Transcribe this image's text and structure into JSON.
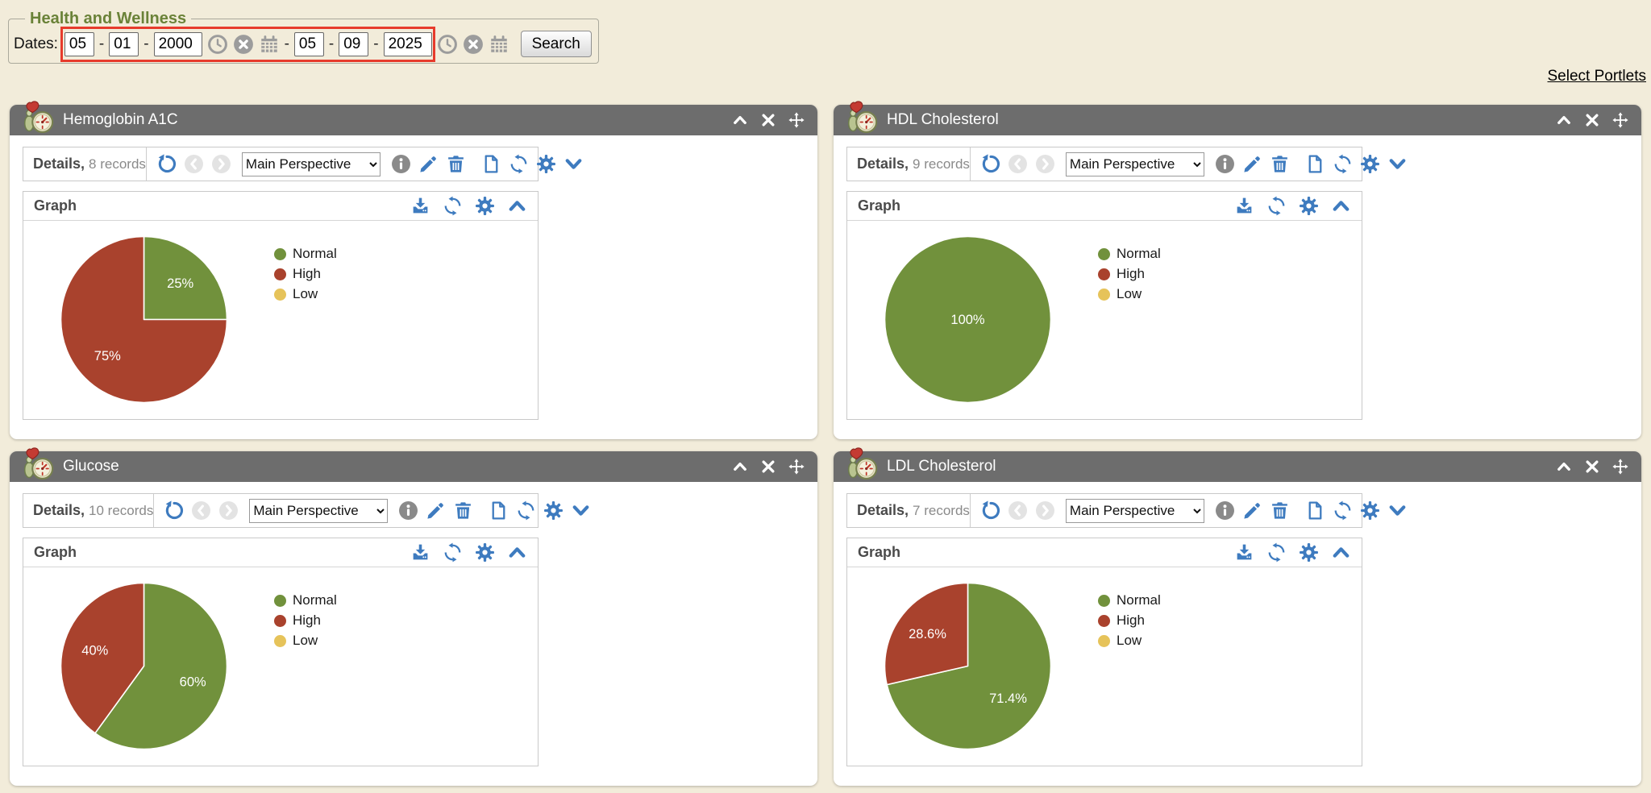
{
  "filter": {
    "legend": "Health and Wellness",
    "dates_label": "Dates:",
    "from": {
      "month": "05",
      "day": "01",
      "year": "2000"
    },
    "to": {
      "month": "05",
      "day": "09",
      "year": "2025"
    },
    "separator": "-",
    "search_label": "Search"
  },
  "select_portlets_label": "Select Portlets",
  "portlets": [
    {
      "title": "Hemoglobin A1C",
      "details_label": "Details,",
      "records_text": "8 records",
      "records_count": 8,
      "perspective": "Main Perspective",
      "graph_label": "Graph"
    },
    {
      "title": "HDL Cholesterol",
      "details_label": "Details,",
      "records_text": "9 records",
      "records_count": 9,
      "perspective": "Main Perspective",
      "graph_label": "Graph"
    },
    {
      "title": "Glucose",
      "details_label": "Details,",
      "records_text": "10 records",
      "records_count": 10,
      "perspective": "Main Perspective",
      "graph_label": "Graph"
    },
    {
      "title": "LDL Cholesterol",
      "details_label": "Details,",
      "records_text": "7 records",
      "records_count": 7,
      "perspective": "Main Perspective",
      "graph_label": "Graph"
    }
  ],
  "chart_data": [
    {
      "type": "pie",
      "title": "Hemoglobin A1C",
      "categories": [
        "Normal",
        "High",
        "Low"
      ],
      "values": [
        25,
        75,
        0
      ],
      "labels": [
        "25%",
        "75%",
        null
      ],
      "colors": [
        "#71913c",
        "#a9422d",
        "#e6c35a"
      ],
      "legend_position": "right",
      "units": "%"
    },
    {
      "type": "pie",
      "title": "HDL Cholesterol",
      "categories": [
        "Normal",
        "High",
        "Low"
      ],
      "values": [
        100,
        0,
        0
      ],
      "labels": [
        "100%",
        null,
        null
      ],
      "colors": [
        "#71913c",
        "#a9422d",
        "#e6c35a"
      ],
      "legend_position": "right",
      "units": "%"
    },
    {
      "type": "pie",
      "title": "Glucose",
      "categories": [
        "Normal",
        "High",
        "Low"
      ],
      "values": [
        60,
        40,
        0
      ],
      "labels": [
        "60%",
        "40%",
        null
      ],
      "colors": [
        "#71913c",
        "#a9422d",
        "#e6c35a"
      ],
      "legend_position": "right",
      "units": "%"
    },
    {
      "type": "pie",
      "title": "LDL Cholesterol",
      "categories": [
        "Normal",
        "High",
        "Low"
      ],
      "values": [
        71.4,
        28.6,
        0
      ],
      "labels": [
        "71.4%",
        "28.6%",
        null
      ],
      "colors": [
        "#71913c",
        "#a9422d",
        "#e6c35a"
      ],
      "legend_position": "right",
      "units": "%"
    }
  ],
  "colors": {
    "pie_normal": "#71913c",
    "pie_high": "#a9422d",
    "pie_low": "#e6c35a",
    "toolbar_icon_blue": "#3e7bbf",
    "portlet_header_gray": "#6d6d6d",
    "annotation_red": "#e73b2c",
    "section_title_green": "#6a8238",
    "page_background": "#f2ecda"
  },
  "icons": {
    "clock": "clock-circle",
    "clear": "x-circle",
    "calendar": "calendar-grid",
    "reset": "rotate-left-arrow",
    "previous": "chevron-left-circle",
    "next": "chevron-right-circle",
    "info": "info-circle",
    "edit": "pencil",
    "delete": "trash",
    "new_record": "blank-page",
    "refresh": "circular-arrows",
    "settings": "gear",
    "expand": "chevron-down",
    "collapse": "chevron-up",
    "download": "download-tray",
    "close": "bold-x",
    "move": "four-way-arrows",
    "portlet": "heart-and-gauge"
  }
}
